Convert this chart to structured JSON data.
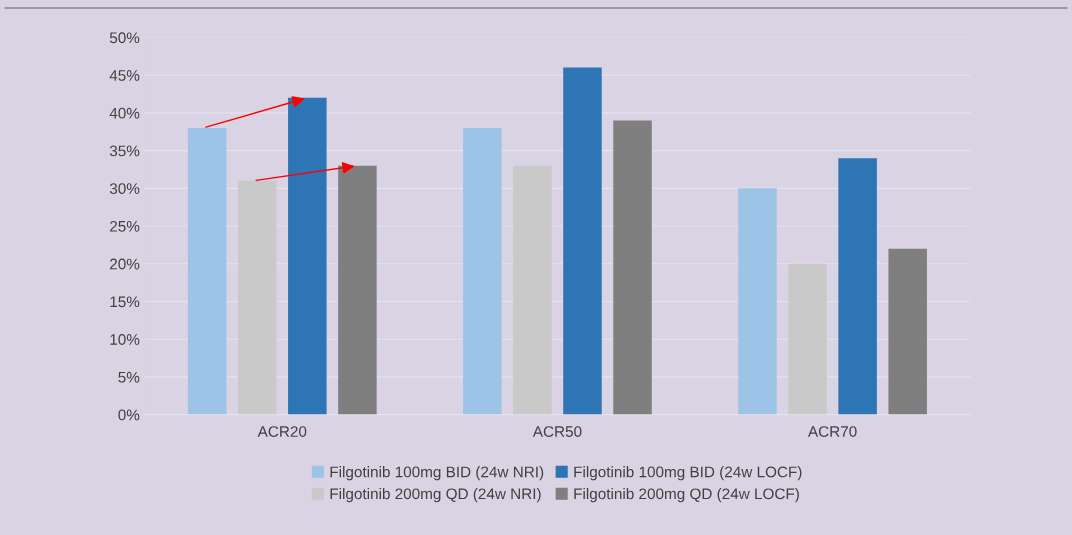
{
  "chart_data": {
    "type": "bar",
    "categories": [
      "ACR20",
      "ACR50",
      "ACR70"
    ],
    "series": [
      {
        "name": "Filgotinib 100mg BID (24w NRI)",
        "color": "#9dc3e6",
        "values": [
          38,
          38,
          30
        ]
      },
      {
        "name": "Filgotinib 200mg QD (24w NRI)",
        "color": "#c9c9c9",
        "values": [
          31,
          33,
          20
        ]
      },
      {
        "name": "Filgotinib 100mg BID (24w LOCF)",
        "color": "#2e75b6",
        "values": [
          42,
          46,
          34
        ]
      },
      {
        "name": "Filgotinib 200mg QD (24w LOCF)",
        "color": "#7f7f7f",
        "values": [
          33,
          39,
          22
        ]
      }
    ],
    "ylim": [
      0,
      50
    ],
    "yticks": [
      {
        "value": 0,
        "label": "0%"
      },
      {
        "value": 5,
        "label": "5%"
      },
      {
        "value": 10,
        "label": "10%"
      },
      {
        "value": 15,
        "label": "15%"
      },
      {
        "value": 20,
        "label": "20%"
      },
      {
        "value": 25,
        "label": "25%"
      },
      {
        "value": 30,
        "label": "30%"
      },
      {
        "value": 35,
        "label": "35%"
      },
      {
        "value": 40,
        "label": "40%"
      },
      {
        "value": 45,
        "label": "45%"
      },
      {
        "value": 50,
        "label": "50%"
      }
    ],
    "grid": "y",
    "legend": "bottom"
  }
}
